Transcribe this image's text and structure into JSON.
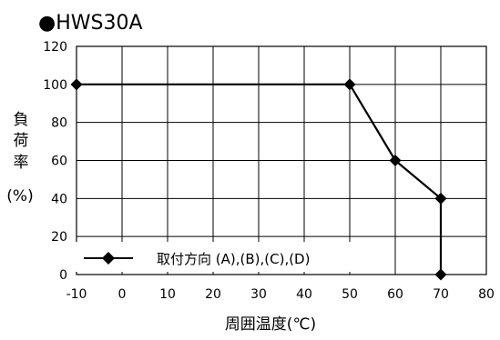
{
  "chart_data": {
    "type": "line",
    "title": "HWS30A",
    "title_bullet": "●",
    "xlabel": "周囲温度(℃)",
    "ylabel": "負荷率(%)",
    "ylabel_chars": [
      "負",
      "荷",
      "率"
    ],
    "ylabel_unit": "(%)",
    "xlim": [
      -10,
      80
    ],
    "ylim": [
      0,
      120
    ],
    "xticks": [
      -10,
      0,
      10,
      20,
      30,
      40,
      50,
      60,
      70,
      80
    ],
    "yticks": [
      0,
      20,
      40,
      60,
      80,
      100,
      120
    ],
    "grid": true,
    "legend_position": "bottom-left",
    "series": [
      {
        "name": "取付方向 (A),(B),(C),(D)",
        "marker": "diamond",
        "color": "#000000",
        "x": [
          -10,
          50,
          60,
          70,
          70
        ],
        "y": [
          100,
          100,
          60,
          40,
          0
        ]
      }
    ]
  }
}
